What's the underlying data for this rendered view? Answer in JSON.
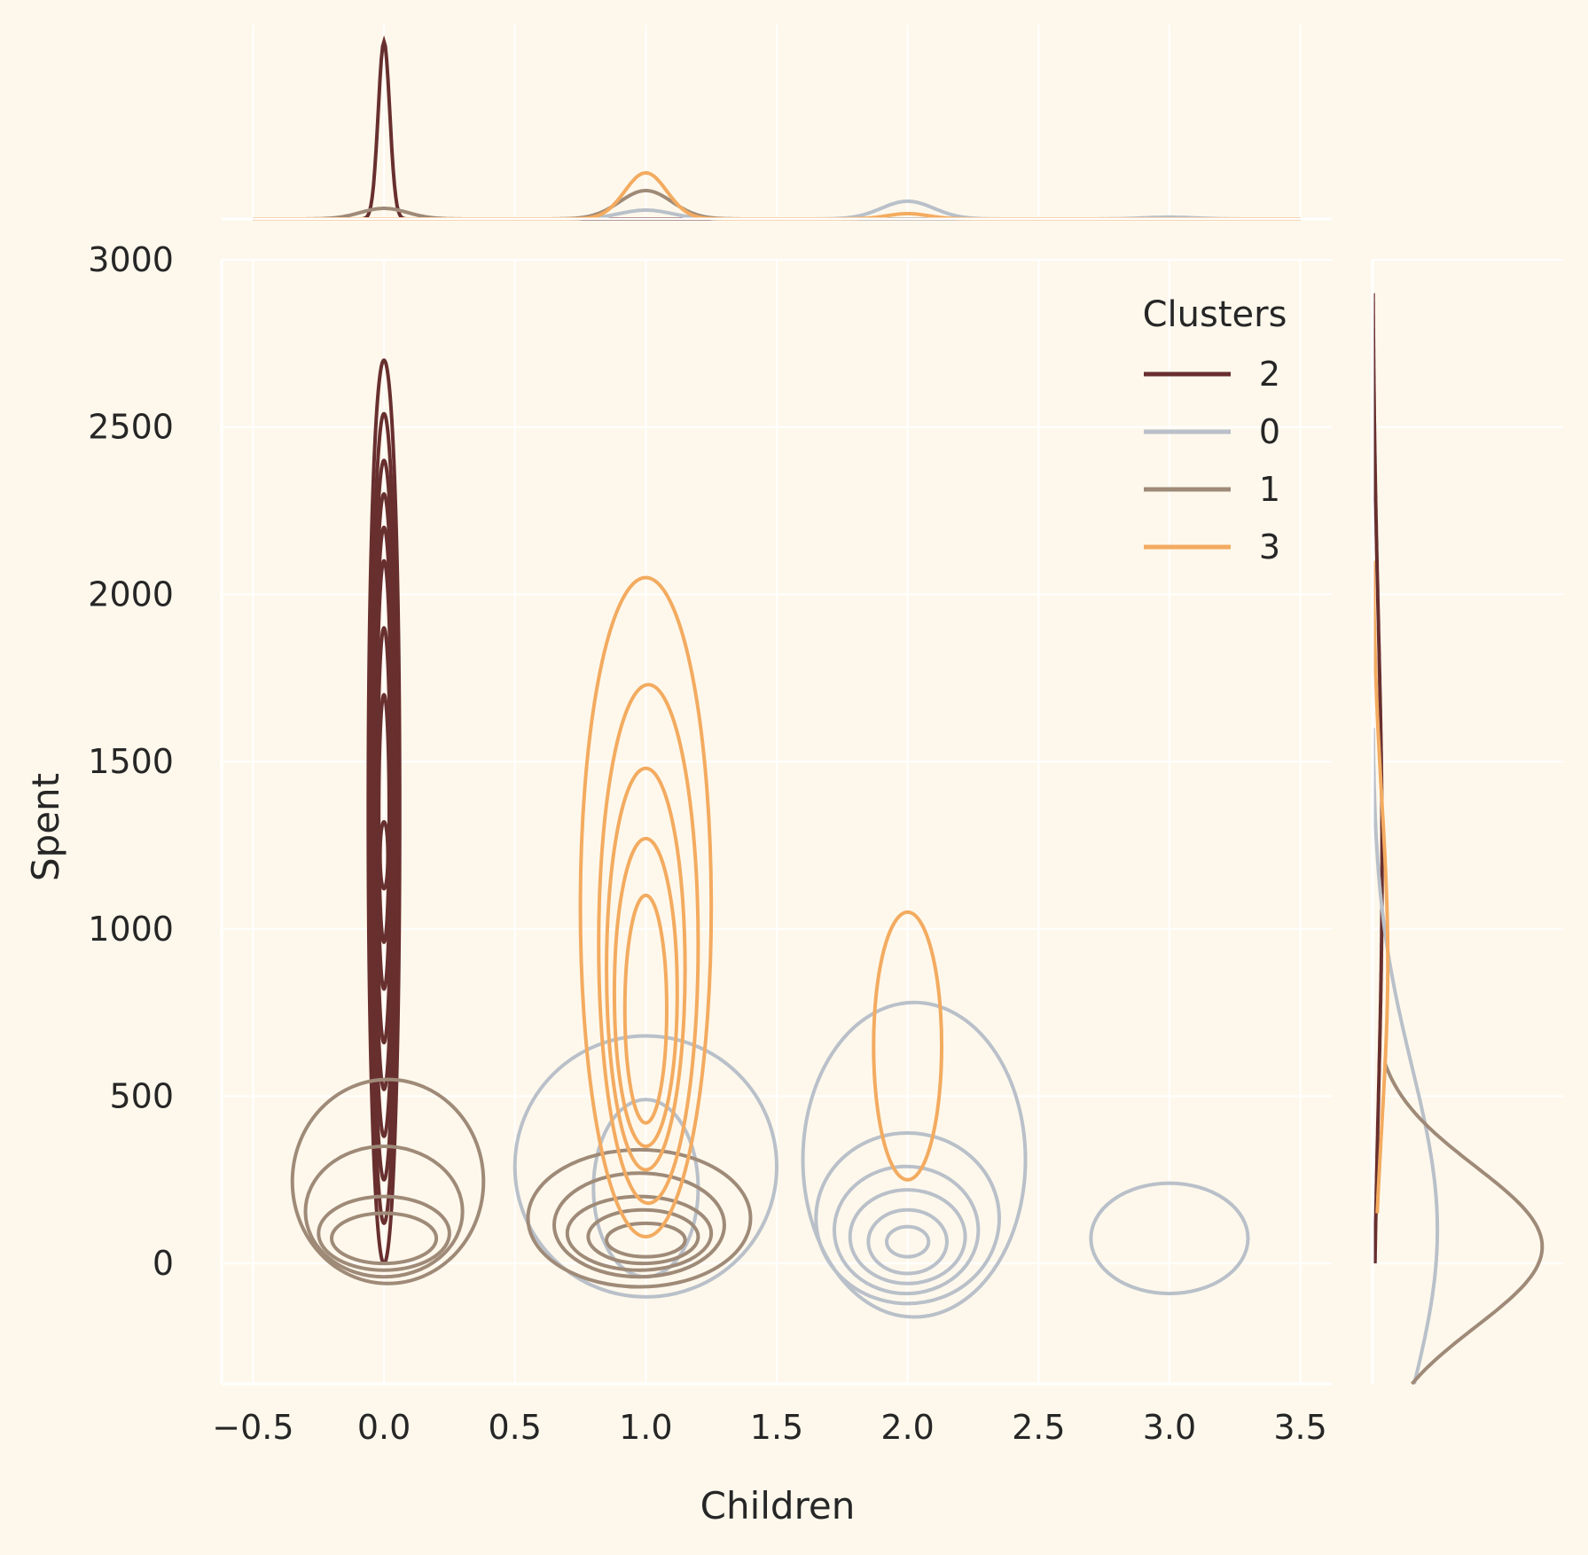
{
  "chart_data": {
    "type": "kde-jointplot",
    "xlabel": "Children",
    "ylabel": "Spent",
    "xlim": [
      -0.62,
      3.62
    ],
    "ylim": [
      -360,
      3000
    ],
    "xticks": [
      -0.5,
      0.0,
      0.5,
      1.0,
      1.5,
      2.0,
      2.5,
      3.0,
      3.5
    ],
    "xtick_labels": [
      "−0.5",
      "0.0",
      "0.5",
      "1.0",
      "1.5",
      "2.0",
      "2.5",
      "3.0",
      "3.5"
    ],
    "yticks": [
      0,
      500,
      1000,
      1500,
      2000,
      2500,
      3000
    ],
    "ytick_labels": [
      "0",
      "500",
      "1000",
      "1500",
      "2000",
      "2500",
      "3000"
    ],
    "grid": true,
    "legend": {
      "title": "Clusters",
      "placement": "top-right",
      "entries": [
        {
          "label": "2",
          "color": "#682F2F"
        },
        {
          "label": "0",
          "color": "#B9C0C9"
        },
        {
          "label": "1",
          "color": "#9F8A78"
        },
        {
          "label": "3",
          "color": "#F3AB60"
        }
      ]
    },
    "series": [
      {
        "name": "2",
        "color": "#682F2F",
        "contours": [
          {
            "x": [
              0.0
            ],
            "y": [
              0,
              2700
            ],
            "width": 0.06
          },
          {
            "x": [
              0.0
            ],
            "y": [
              120,
              2540
            ],
            "width": 0.05
          },
          {
            "x": [
              0.0
            ],
            "y": [
              250,
              2400
            ],
            "width": 0.045
          },
          {
            "x": [
              0.0
            ],
            "y": [
              380,
              2300
            ],
            "width": 0.04
          },
          {
            "x": [
              0.0
            ],
            "y": [
              520,
              2200
            ],
            "width": 0.035
          },
          {
            "x": [
              0.0
            ],
            "y": [
              660,
              2100
            ],
            "width": 0.03
          },
          {
            "x": [
              0.0
            ],
            "y": [
              820,
              1900
            ],
            "width": 0.025
          },
          {
            "x": [
              0.0
            ],
            "y": [
              960,
              1700
            ],
            "width": 0.02
          },
          {
            "x": [
              0.0
            ],
            "y": [
              1120,
              1320
            ],
            "width": 0.015
          }
        ],
        "marginal_x": [
          {
            "x": 0.0,
            "height": 1.0,
            "bw": 0.022
          }
        ],
        "marginal_y": {
          "peak_spent": 1200,
          "peak_density": 0.05,
          "range": [
            0,
            2900
          ]
        }
      },
      {
        "name": "0",
        "color": "#B9C0C9",
        "contours": [
          {
            "x": [
              0.5,
              1.5
            ],
            "y": [
              -100,
              680
            ]
          },
          {
            "x": [
              1.6,
              2.45
            ],
            "y": [
              -160,
              780
            ]
          },
          {
            "x": [
              2.7,
              3.3
            ],
            "y": [
              -90,
              240
            ]
          },
          {
            "x": [
              0.8,
              1.2
            ],
            "y": [
              -40,
              490
            ]
          },
          {
            "x": [
              1.65,
              2.35
            ],
            "y": [
              -120,
              390
            ]
          },
          {
            "x": [
              1.72,
              2.27
            ],
            "y": [
              -90,
              290
            ]
          },
          {
            "x": [
              1.78,
              2.22
            ],
            "y": [
              -60,
              220
            ]
          },
          {
            "x": [
              1.85,
              2.15
            ],
            "y": [
              -30,
              160
            ]
          },
          {
            "x": [
              1.92,
              2.08
            ],
            "y": [
              20,
              110
            ]
          }
        ],
        "marginal_x": [
          {
            "x": 0.0,
            "height": 0.0,
            "bw": 0.1
          },
          {
            "x": 1.0,
            "height": 0.05,
            "bw": 0.1
          },
          {
            "x": 2.0,
            "height": 0.1,
            "bw": 0.1
          },
          {
            "x": 3.0,
            "height": 0.01,
            "bw": 0.1
          }
        ],
        "marginal_y": {
          "peak_spent": 100,
          "peak_density": 0.34,
          "range": [
            -360,
            1600
          ]
        }
      },
      {
        "name": "1",
        "color": "#9F8A78",
        "contours": [
          {
            "x": [
              -0.35,
              0.38
            ],
            "y": [
              -60,
              550
            ]
          },
          {
            "x": [
              -0.3,
              0.3
            ],
            "y": [
              -40,
              350
            ]
          },
          {
            "x": [
              -0.25,
              0.25
            ],
            "y": [
              -20,
              200
            ]
          },
          {
            "x": [
              -0.2,
              0.2
            ],
            "y": [
              0,
              150
            ]
          },
          {
            "x": [
              0.55,
              1.4
            ],
            "y": [
              -70,
              340
            ]
          },
          {
            "x": [
              0.65,
              1.3
            ],
            "y": [
              -40,
              270
            ]
          },
          {
            "x": [
              0.7,
              1.25
            ],
            "y": [
              -20,
              200
            ]
          },
          {
            "x": [
              0.78,
              1.2
            ],
            "y": [
              0,
              160
            ]
          },
          {
            "x": [
              0.85,
              1.15
            ],
            "y": [
              20,
              120
            ]
          }
        ],
        "marginal_x": [
          {
            "x": 0.0,
            "height": 0.06,
            "bw": 0.09
          },
          {
            "x": 1.0,
            "height": 0.16,
            "bw": 0.1
          }
        ],
        "marginal_y": {
          "peak_spent": 50,
          "peak_density": 0.89,
          "range": [
            -360,
            600
          ]
        }
      },
      {
        "name": "3",
        "color": "#F3AB60",
        "contours": [
          {
            "x": [
              0.75,
              1.25
            ],
            "y": [
              80,
              2050
            ]
          },
          {
            "x": [
              0.82,
              1.2
            ],
            "y": [
              180,
              1730
            ]
          },
          {
            "x": [
              0.85,
              1.15
            ],
            "y": [
              280,
              1480
            ]
          },
          {
            "x": [
              0.88,
              1.12
            ],
            "y": [
              350,
              1270
            ]
          },
          {
            "x": [
              0.92,
              1.08
            ],
            "y": [
              420,
              1100
            ]
          },
          {
            "x": [
              1.87,
              2.13
            ],
            "y": [
              250,
              1050
            ]
          }
        ],
        "marginal_x": [
          {
            "x": 1.0,
            "height": 0.26,
            "bw": 0.08
          },
          {
            "x": 2.0,
            "height": 0.03,
            "bw": 0.08
          }
        ],
        "marginal_y": {
          "peak_spent": 900,
          "peak_density": 0.08,
          "range": [
            150,
            2100
          ]
        }
      }
    ]
  }
}
